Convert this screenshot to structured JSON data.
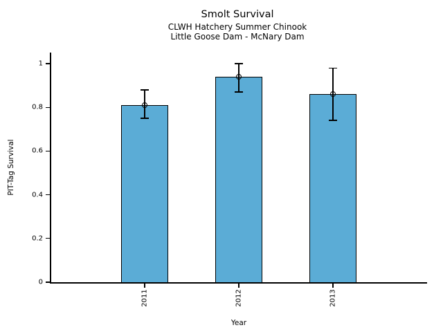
{
  "chart_data": {
    "type": "bar",
    "title": "Smolt Survival",
    "subtitle1": "CLWH Hatchery Summer Chinook",
    "subtitle2": "Little Goose Dam - McNary Dam",
    "xlabel": "Year",
    "ylabel": "PIT-Tag Survival",
    "categories": [
      "2011",
      "2012",
      "2013"
    ],
    "values": [
      0.81,
      0.94,
      0.86
    ],
    "error_low": [
      0.75,
      0.87,
      0.74
    ],
    "error_high": [
      0.88,
      1.0,
      0.98
    ],
    "ytick_labels": [
      "0",
      "0.2",
      "0.4",
      "0.6",
      "0.8",
      "1"
    ],
    "ytick_values": [
      0,
      0.2,
      0.4,
      0.6,
      0.8,
      1
    ],
    "ylim": [
      0,
      1.05
    ],
    "legend": null,
    "grid": false,
    "bar_color": "#5BACD6",
    "bar_edge_color": "#000000",
    "error_color": "#000000"
  }
}
